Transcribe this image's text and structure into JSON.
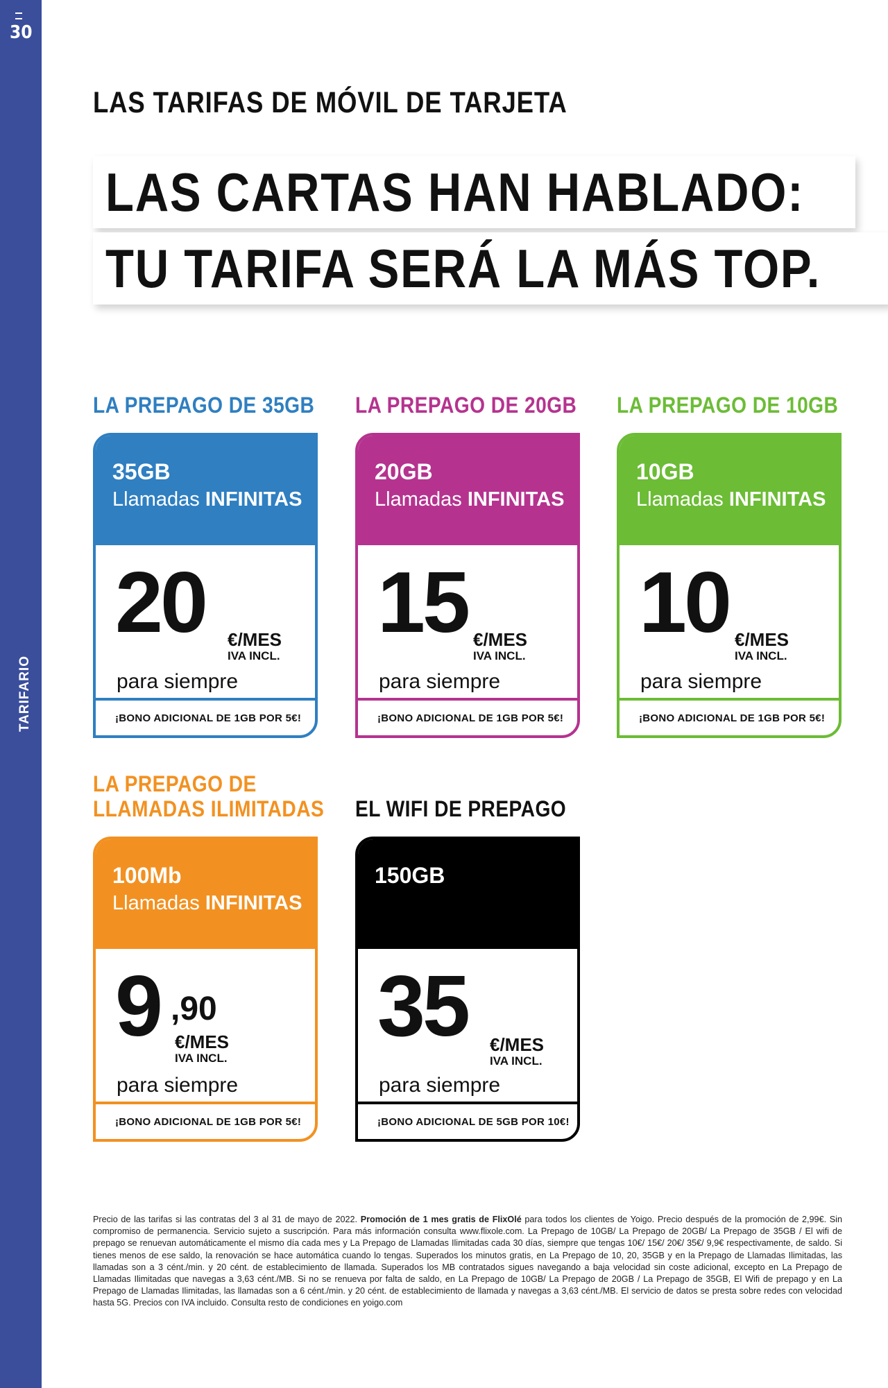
{
  "page": {
    "number": "30",
    "side_label": "TARIFARIO",
    "sidebar_color": "#3a4e9c"
  },
  "section_title": "LAS TARIFAS DE MÓVIL DE TARJETA",
  "headline": {
    "line1": "LAS CARTAS HAN HABLADO:",
    "line2": "TU TARIFA SERÁ LA MÁS TOP."
  },
  "common": {
    "calls_prefix": "Llamadas ",
    "calls_bold": "INFINITAS",
    "unit": "€/MES",
    "iva": "IVA INCL.",
    "forever": "para siempre"
  },
  "cards": [
    {
      "title": "LA PREPAGO DE 35GB",
      "color": "#2f7fc1",
      "data": "35GB",
      "price": "20",
      "bonus": "¡BONO ADICIONAL DE 1GB POR 5€!"
    },
    {
      "title": "LA PREPAGO DE 20GB",
      "color": "#b5338f",
      "data": "20GB",
      "price": "15",
      "bonus": "¡BONO ADICIONAL DE 1GB POR 5€!"
    },
    {
      "title": "LA PREPAGO DE 10GB",
      "color": "#6cbc36",
      "data": "10GB",
      "price": "10",
      "bonus": "¡BONO ADICIONAL DE 1GB POR 5€!"
    },
    {
      "title_line1": "LA PREPAGO DE",
      "title_line2": "LLAMADAS ILIMITADAS",
      "color": "#f29121",
      "data": "100Mb",
      "price": "9",
      "cents": ",90",
      "bonus": "¡BONO ADICIONAL DE 1GB POR 5€!"
    },
    {
      "title": "EL WIFI DE PREPAGO",
      "color": "#000000",
      "data": "150GB",
      "price": "35",
      "bonus": "¡BONO ADICIONAL DE 5GB POR 10€!"
    }
  ],
  "legal": {
    "part1": "Precio de las tarifas si las contratas del 3 al 31 de mayo de 2022. ",
    "bold": "Promoción de 1 mes gratis de FlixOlé",
    "part2": " para todos los clientes de Yoigo. Precio después de la promoción de 2,99€. Sin compromiso de permanencia. Servicio sujeto a suscripción. Para más información consulta www.flixole.com. La Prepago de 10GB/ La Prepago de 20GB/ La Prepago de 35GB / El wifi de prepago se renuevan automáticamente el mismo día cada mes y La Prepago de Llamadas Ilimitadas cada 30 días, siempre que tengas 10€/ 15€/ 20€/ 35€/ 9,9€ respectivamente, de saldo. Si tienes menos de ese saldo, la renovación se hace automática cuando lo tengas. Superados los minutos gratis, en La Prepago de 10, 20, 35GB y en la Prepago de Llamadas Ilimitadas, las llamadas son a 3 cént./min. y 20 cént. de establecimiento de llamada. Superados los MB contratados sigues navegando a baja velocidad sin coste adicional, excepto en La Prepago de Llamadas Ilimitadas que navegas a 3,63 cént./MB. Si no se renueva por falta de saldo, en La Prepago de 10GB/ La Prepago de 20GB / La Prepago de 35GB, El Wifi de prepago y en La Prepago de Llamadas Ilimitadas, las llamadas son a 6 cént./min. y 20 cént. de establecimiento de llamada y navegas a 3,63 cént./MB. El servicio de datos se presta sobre redes con velocidad hasta 5G. Precios con IVA incluido. Consulta resto de condiciones en yoigo.com"
  }
}
